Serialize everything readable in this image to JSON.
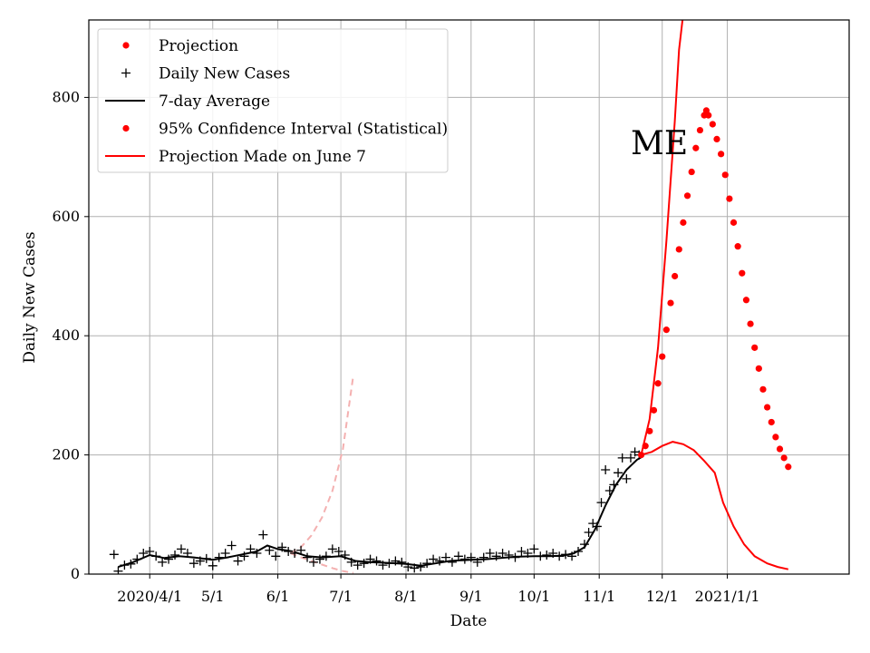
{
  "chart_data": {
    "type": "line",
    "annotation": "ME",
    "xlabel": "Date",
    "ylabel": "Daily New Cases",
    "xlim": [
      "2020-03-03",
      "2021-02-28"
    ],
    "ylim": [
      0,
      930
    ],
    "grid": true,
    "legend_position": "top-left",
    "x_ticks": [
      {
        "date": "2020-04-01",
        "label": "2020/4/1"
      },
      {
        "date": "2020-05-01",
        "label": "5/1"
      },
      {
        "date": "2020-06-01",
        "label": "6/1"
      },
      {
        "date": "2020-07-01",
        "label": "7/1"
      },
      {
        "date": "2020-08-01",
        "label": "8/1"
      },
      {
        "date": "2020-09-01",
        "label": "9/1"
      },
      {
        "date": "2020-10-01",
        "label": "10/1"
      },
      {
        "date": "2020-11-01",
        "label": "11/1"
      },
      {
        "date": "2020-12-01",
        "label": "12/1"
      },
      {
        "date": "2021-01-01",
        "label": "2021/1/1"
      }
    ],
    "y_ticks": [
      0,
      200,
      400,
      600,
      800
    ],
    "colors": {
      "projection": "#ff0000",
      "daily": "#000000",
      "average": "#000000",
      "ci": "#ff0000",
      "june7": "#ff0000",
      "june7_faded": "#f4b0b0"
    },
    "legend": [
      {
        "label": "Projection",
        "marker": "dot",
        "color": "#ff0000"
      },
      {
        "label": "Daily New Cases",
        "marker": "plus",
        "color": "#000000"
      },
      {
        "label": "7-day Average",
        "marker": "line",
        "color": "#000000"
      },
      {
        "label": "95% Confidence Interval (Statistical)",
        "marker": "dot",
        "color": "#ff0000"
      },
      {
        "label": "Projection Made on June 7",
        "marker": "line",
        "color": "#ff0000"
      }
    ],
    "series": [
      {
        "name": "Daily New Cases",
        "style": "plus",
        "points": [
          [
            "2020-03-15",
            33
          ],
          [
            "2020-03-17",
            5
          ],
          [
            "2020-03-20",
            15
          ],
          [
            "2020-03-23",
            17
          ],
          [
            "2020-03-26",
            25
          ],
          [
            "2020-03-29",
            35
          ],
          [
            "2020-04-01",
            38
          ],
          [
            "2020-04-04",
            30
          ],
          [
            "2020-04-07",
            20
          ],
          [
            "2020-04-10",
            25
          ],
          [
            "2020-04-13",
            32
          ],
          [
            "2020-04-16",
            42
          ],
          [
            "2020-04-19",
            35
          ],
          [
            "2020-04-22",
            18
          ],
          [
            "2020-04-25",
            22
          ],
          [
            "2020-04-28",
            26
          ],
          [
            "2020-05-01",
            14
          ],
          [
            "2020-05-04",
            28
          ],
          [
            "2020-05-07",
            35
          ],
          [
            "2020-05-10",
            48
          ],
          [
            "2020-05-13",
            22
          ],
          [
            "2020-05-16",
            30
          ],
          [
            "2020-05-19",
            42
          ],
          [
            "2020-05-22",
            35
          ],
          [
            "2020-05-25",
            66
          ],
          [
            "2020-05-28",
            40
          ],
          [
            "2020-05-31",
            30
          ],
          [
            "2020-06-03",
            45
          ],
          [
            "2020-06-06",
            38
          ],
          [
            "2020-06-09",
            35
          ],
          [
            "2020-06-12",
            40
          ],
          [
            "2020-06-15",
            28
          ],
          [
            "2020-06-18",
            20
          ],
          [
            "2020-06-21",
            25
          ],
          [
            "2020-06-24",
            30
          ],
          [
            "2020-06-27",
            42
          ],
          [
            "2020-06-30",
            38
          ],
          [
            "2020-07-03",
            32
          ],
          [
            "2020-07-06",
            20
          ],
          [
            "2020-07-09",
            15
          ],
          [
            "2020-07-12",
            18
          ],
          [
            "2020-07-15",
            25
          ],
          [
            "2020-07-18",
            22
          ],
          [
            "2020-07-21",
            15
          ],
          [
            "2020-07-24",
            18
          ],
          [
            "2020-07-27",
            22
          ],
          [
            "2020-07-30",
            20
          ],
          [
            "2020-08-02",
            12
          ],
          [
            "2020-08-05",
            10
          ],
          [
            "2020-08-08",
            12
          ],
          [
            "2020-08-11",
            18
          ],
          [
            "2020-08-14",
            25
          ],
          [
            "2020-08-17",
            22
          ],
          [
            "2020-08-20",
            28
          ],
          [
            "2020-08-23",
            20
          ],
          [
            "2020-08-26",
            30
          ],
          [
            "2020-08-29",
            25
          ],
          [
            "2020-09-01",
            28
          ],
          [
            "2020-09-04",
            20
          ],
          [
            "2020-09-07",
            28
          ],
          [
            "2020-09-10",
            35
          ],
          [
            "2020-09-13",
            30
          ],
          [
            "2020-09-16",
            35
          ],
          [
            "2020-09-19",
            32
          ],
          [
            "2020-09-22",
            28
          ],
          [
            "2020-09-25",
            38
          ],
          [
            "2020-09-28",
            35
          ],
          [
            "2020-10-01",
            42
          ],
          [
            "2020-10-04",
            30
          ],
          [
            "2020-10-07",
            32
          ],
          [
            "2020-10-10",
            35
          ],
          [
            "2020-10-13",
            30
          ],
          [
            "2020-10-16",
            33
          ],
          [
            "2020-10-19",
            30
          ],
          [
            "2020-10-22",
            38
          ],
          [
            "2020-10-25",
            50
          ],
          [
            "2020-10-27",
            70
          ],
          [
            "2020-10-29",
            85
          ],
          [
            "2020-10-31",
            80
          ],
          [
            "2020-11-02",
            120
          ],
          [
            "2020-11-04",
            175
          ],
          [
            "2020-11-06",
            140
          ],
          [
            "2020-11-08",
            150
          ],
          [
            "2020-11-10",
            170
          ],
          [
            "2020-11-12",
            195
          ],
          [
            "2020-11-14",
            160
          ],
          [
            "2020-11-16",
            195
          ],
          [
            "2020-11-18",
            205
          ],
          [
            "2020-11-20",
            200
          ]
        ]
      },
      {
        "name": "7-day Average",
        "style": "line",
        "points": [
          [
            "2020-03-17",
            12
          ],
          [
            "2020-03-24",
            20
          ],
          [
            "2020-04-01",
            32
          ],
          [
            "2020-04-08",
            27
          ],
          [
            "2020-04-15",
            30
          ],
          [
            "2020-04-22",
            28
          ],
          [
            "2020-05-01",
            24
          ],
          [
            "2020-05-08",
            28
          ],
          [
            "2020-05-15",
            33
          ],
          [
            "2020-05-22",
            38
          ],
          [
            "2020-05-27",
            48
          ],
          [
            "2020-06-01",
            42
          ],
          [
            "2020-06-08",
            38
          ],
          [
            "2020-06-15",
            30
          ],
          [
            "2020-06-22",
            28
          ],
          [
            "2020-07-01",
            30
          ],
          [
            "2020-07-08",
            22
          ],
          [
            "2020-07-15",
            20
          ],
          [
            "2020-07-22",
            19
          ],
          [
            "2020-08-01",
            17
          ],
          [
            "2020-08-08",
            14
          ],
          [
            "2020-08-15",
            18
          ],
          [
            "2020-08-22",
            22
          ],
          [
            "2020-09-01",
            24
          ],
          [
            "2020-09-08",
            25
          ],
          [
            "2020-09-15",
            27
          ],
          [
            "2020-09-22",
            29
          ],
          [
            "2020-10-01",
            30
          ],
          [
            "2020-10-08",
            30
          ],
          [
            "2020-10-15",
            31
          ],
          [
            "2020-10-20",
            35
          ],
          [
            "2020-10-25",
            45
          ],
          [
            "2020-10-30",
            75
          ],
          [
            "2020-11-04",
            115
          ],
          [
            "2020-11-09",
            150
          ],
          [
            "2020-11-14",
            175
          ],
          [
            "2020-11-19",
            192
          ],
          [
            "2020-11-22",
            198
          ]
        ]
      },
      {
        "name": "Projection",
        "style": "dot",
        "points": [
          [
            "2020-11-21",
            200
          ],
          [
            "2020-11-23",
            215
          ],
          [
            "2020-11-25",
            240
          ],
          [
            "2020-11-27",
            275
          ],
          [
            "2020-11-29",
            320
          ],
          [
            "2020-12-01",
            365
          ],
          [
            "2020-12-03",
            410
          ],
          [
            "2020-12-05",
            455
          ],
          [
            "2020-12-07",
            500
          ],
          [
            "2020-12-09",
            545
          ],
          [
            "2020-12-11",
            590
          ],
          [
            "2020-12-13",
            635
          ],
          [
            "2020-12-15",
            675
          ],
          [
            "2020-12-17",
            715
          ],
          [
            "2020-12-19",
            745
          ],
          [
            "2020-12-21",
            770
          ],
          [
            "2020-12-22",
            778
          ],
          [
            "2020-12-23",
            770
          ],
          [
            "2020-12-25",
            755
          ],
          [
            "2020-12-27",
            730
          ],
          [
            "2020-12-29",
            705
          ],
          [
            "2020-12-31",
            670
          ],
          [
            "2021-01-02",
            630
          ],
          [
            "2021-01-04",
            590
          ],
          [
            "2021-01-06",
            550
          ],
          [
            "2021-01-08",
            505
          ],
          [
            "2021-01-10",
            460
          ],
          [
            "2021-01-12",
            420
          ],
          [
            "2021-01-14",
            380
          ],
          [
            "2021-01-16",
            345
          ],
          [
            "2021-01-18",
            310
          ],
          [
            "2021-01-20",
            280
          ],
          [
            "2021-01-22",
            255
          ],
          [
            "2021-01-24",
            230
          ],
          [
            "2021-01-26",
            210
          ],
          [
            "2021-01-28",
            195
          ],
          [
            "2021-01-30",
            180
          ]
        ]
      },
      {
        "name": "95% Confidence Interval (Statistical)",
        "style": "line-upper",
        "points": [
          [
            "2020-11-21",
            200
          ],
          [
            "2020-11-25",
            260
          ],
          [
            "2020-11-29",
            380
          ],
          [
            "2020-12-03",
            560
          ],
          [
            "2020-12-07",
            760
          ],
          [
            "2020-12-09",
            880
          ],
          [
            "2020-12-11",
            940
          ]
        ]
      },
      {
        "name": "95% Confidence Interval (Statistical)",
        "style": "line-lower",
        "points": [
          [
            "2020-11-21",
            200
          ],
          [
            "2020-11-26",
            205
          ],
          [
            "2020-12-01",
            215
          ],
          [
            "2020-12-06",
            222
          ],
          [
            "2020-12-11",
            218
          ],
          [
            "2020-12-16",
            208
          ],
          [
            "2020-12-21",
            190
          ],
          [
            "2020-12-26",
            170
          ],
          [
            "2020-12-30",
            120
          ],
          [
            "2021-01-04",
            80
          ],
          [
            "2021-01-09",
            50
          ],
          [
            "2021-01-14",
            30
          ],
          [
            "2021-01-20",
            18
          ],
          [
            "2021-01-25",
            12
          ],
          [
            "2021-01-30",
            8
          ]
        ]
      },
      {
        "name": "Projection Made on June 7",
        "style": "dashed",
        "points": [
          [
            "2020-06-07",
            35
          ],
          [
            "2020-06-12",
            45
          ],
          [
            "2020-06-17",
            65
          ],
          [
            "2020-06-22",
            95
          ],
          [
            "2020-06-27",
            140
          ],
          [
            "2020-07-02",
            210
          ],
          [
            "2020-07-07",
            335
          ]
        ]
      },
      {
        "name": "Projection Made on June 7",
        "style": "dashed",
        "points": [
          [
            "2020-06-07",
            35
          ],
          [
            "2020-06-12",
            28
          ],
          [
            "2020-06-17",
            22
          ],
          [
            "2020-06-22",
            16
          ],
          [
            "2020-06-27",
            10
          ],
          [
            "2020-07-02",
            5
          ],
          [
            "2020-07-07",
            2
          ]
        ]
      }
    ]
  }
}
